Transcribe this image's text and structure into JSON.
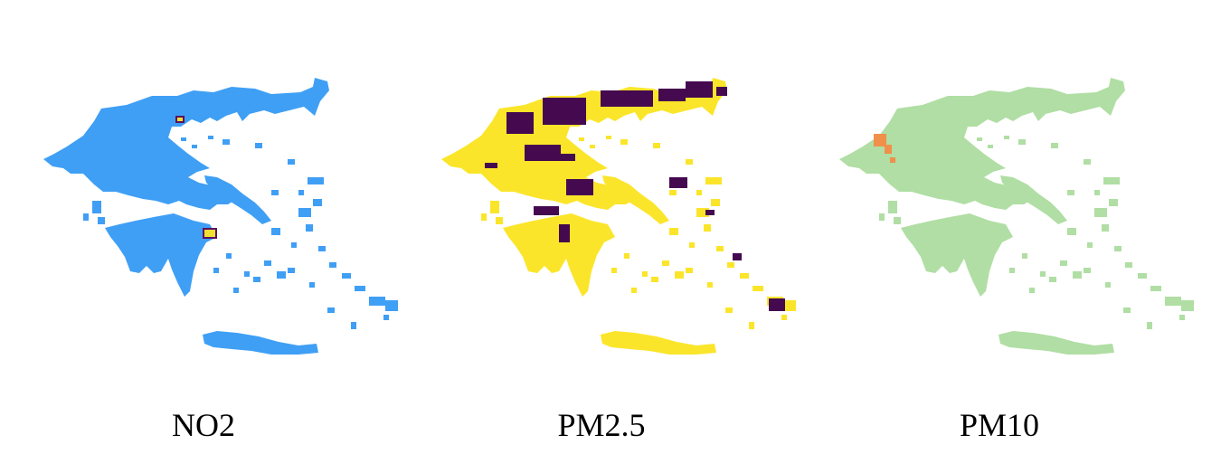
{
  "maps": [
    {
      "label": "NO2",
      "base_color": "#3f9ff5",
      "hot_color": "#f0e032",
      "hot_edge": "#5a1060"
    },
    {
      "label": "PM2.5",
      "base_color": "#fbe52a",
      "hot_color": "#44094f"
    },
    {
      "label": "PM10",
      "base_color": "#b0dea4",
      "hot_color": "#f0904a"
    }
  ]
}
